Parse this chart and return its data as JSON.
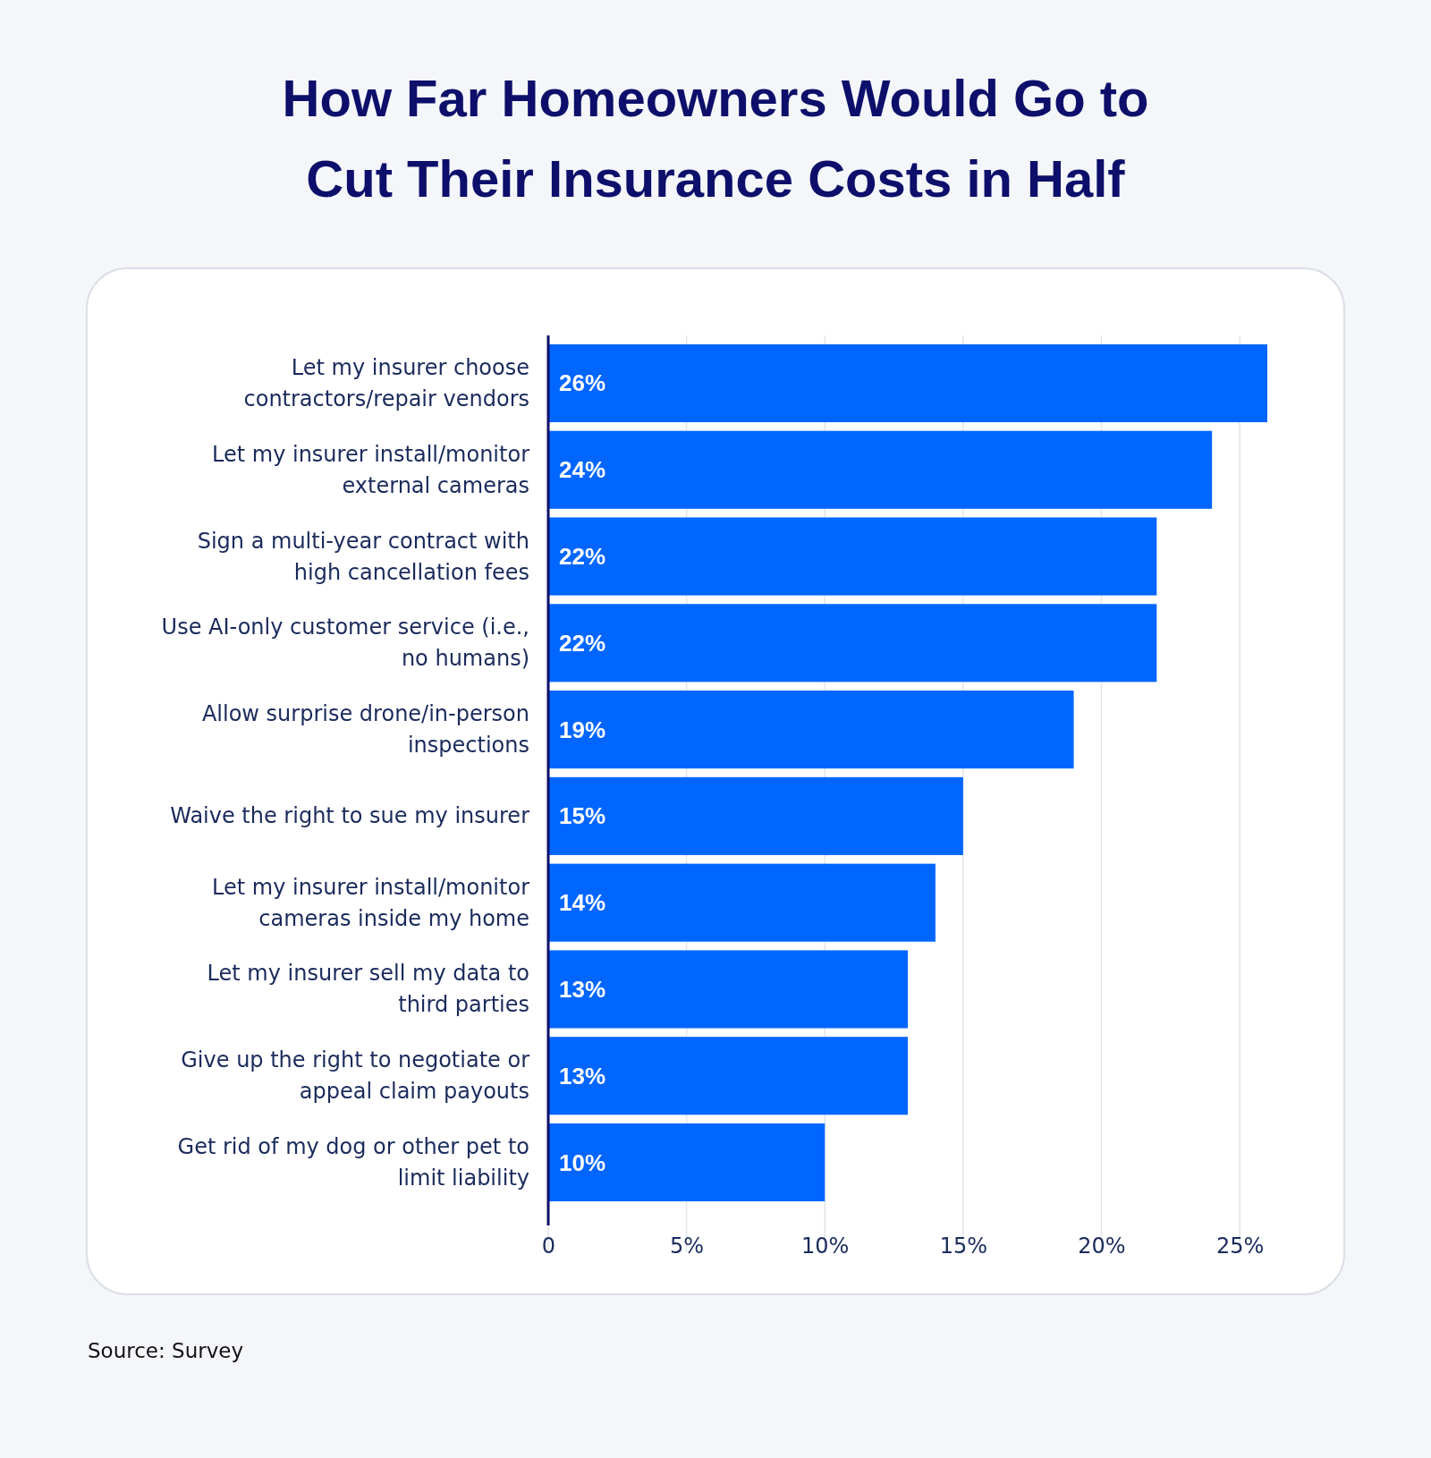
{
  "chart_data": {
    "type": "bar",
    "orientation": "horizontal",
    "title": "How Far Homeowners Would Go to Cut Their Insurance Costs in Half",
    "categories": [
      "Let my insurer choose contractors/repair vendors",
      "Let my insurer install/monitor external cameras",
      "Sign a multi-year contract with high cancellation fees",
      "Use AI-only customer service (i.e., no humans)",
      "Allow surprise drone/in-person inspections",
      "Waive the right to sue my insurer",
      "Let my insurer install/monitor cameras inside my home",
      "Let my insurer sell my data to third parties",
      "Give up the right to negotiate or appeal claim payouts",
      "Get rid of my dog or other pet to limit liability"
    ],
    "values": [
      26,
      24,
      22,
      22,
      19,
      15,
      14,
      13,
      13,
      10
    ],
    "value_labels": [
      "26%",
      "24%",
      "22%",
      "22%",
      "19%",
      "15%",
      "14%",
      "13%",
      "13%",
      "10%"
    ],
    "color": "#0066ff",
    "xlim": [
      0,
      26
    ],
    "xticks": [
      0,
      {
        "value": 5,
        "label": "5%"
      },
      {
        "value": 10,
        "label": "10%"
      },
      {
        "value": 15,
        "label": "15%"
      },
      {
        "value": 20,
        "label": "20%"
      },
      {
        "value": 25,
        "label": "25%"
      }
    ],
    "grid": "x",
    "annotations": [
      "Source: Survey"
    ]
  }
}
